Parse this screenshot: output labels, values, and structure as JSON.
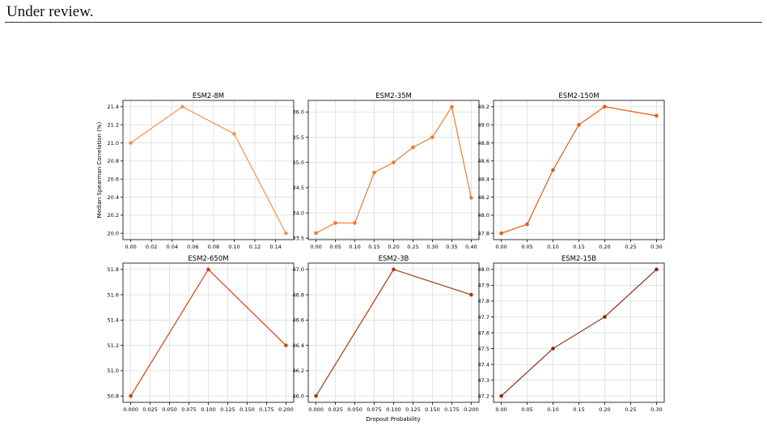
{
  "header": {
    "text": "Under review."
  },
  "figure": {
    "xlabel": "Dropout Probability",
    "ylabel": "Median Spearman Correlation (%)"
  },
  "chart_data": [
    {
      "type": "line",
      "title": "ESM2-8M",
      "color": "#f4924b",
      "x": [
        0.0,
        0.05,
        0.1,
        0.15
      ],
      "y": [
        21.0,
        21.4,
        21.1,
        20.0
      ],
      "xlim": [
        -0.0075,
        0.1575
      ],
      "ylim": [
        19.93,
        21.47
      ],
      "xticks": [
        0.0,
        0.02,
        0.04,
        0.06,
        0.08,
        0.1,
        0.12,
        0.14
      ],
      "xtick_labels": [
        "0.00",
        "0.02",
        "0.04",
        "0.06",
        "0.08",
        "0.10",
        "0.12",
        "0.14"
      ],
      "yticks": [
        20.0,
        20.2,
        20.4,
        20.6,
        20.8,
        21.0,
        21.2,
        21.4
      ],
      "ytick_labels": [
        "20.0",
        "20.2",
        "20.4",
        "20.6",
        "20.8",
        "21.0",
        "21.2",
        "21.4"
      ],
      "grid": true
    },
    {
      "type": "line",
      "title": "ESM2-35M",
      "color": "#ef7a2c",
      "x": [
        0.0,
        0.05,
        0.1,
        0.15,
        0.2,
        0.25,
        0.3,
        0.35,
        0.4
      ],
      "y": [
        33.6,
        33.8,
        33.8,
        34.8,
        35.0,
        35.3,
        35.5,
        36.1,
        34.3
      ],
      "xlim": [
        -0.02,
        0.42
      ],
      "ylim": [
        33.47,
        36.23
      ],
      "xticks": [
        0.0,
        0.05,
        0.1,
        0.15,
        0.2,
        0.25,
        0.3,
        0.35,
        0.4
      ],
      "xtick_labels": [
        "0.00",
        "0.05",
        "0.10",
        "0.15",
        "0.20",
        "0.25",
        "0.30",
        "0.35",
        "0.40"
      ],
      "yticks": [
        33.5,
        34.0,
        34.5,
        35.0,
        35.5,
        36.0
      ],
      "ytick_labels": [
        "33.5",
        "34.0",
        "34.5",
        "35.0",
        "35.5",
        "36.0"
      ],
      "grid": true
    },
    {
      "type": "line",
      "title": "ESM2-150M",
      "color": "#e55a12",
      "x": [
        0.0,
        0.05,
        0.1,
        0.15,
        0.2,
        0.3
      ],
      "y": [
        47.8,
        47.9,
        48.5,
        49.0,
        49.2,
        49.1
      ],
      "xlim": [
        -0.015,
        0.315
      ],
      "ylim": [
        47.73,
        49.27
      ],
      "xticks": [
        0.0,
        0.05,
        0.1,
        0.15,
        0.2,
        0.25,
        0.3
      ],
      "xtick_labels": [
        "0.00",
        "0.05",
        "0.10",
        "0.15",
        "0.20",
        "0.25",
        "0.30"
      ],
      "yticks": [
        47.8,
        48.0,
        48.2,
        48.4,
        48.6,
        48.8,
        49.0,
        49.2
      ],
      "ytick_labels": [
        "47.8",
        "48.0",
        "48.2",
        "48.4",
        "48.6",
        "48.8",
        "49.0",
        "49.2"
      ],
      "grid": true
    },
    {
      "type": "line",
      "title": "ESM2-650M",
      "color": "#c8450c",
      "x": [
        0.0,
        0.1,
        0.2
      ],
      "y": [
        50.8,
        51.8,
        51.2
      ],
      "xlim": [
        -0.01,
        0.21
      ],
      "ylim": [
        50.75,
        51.85
      ],
      "xticks": [
        0.0,
        0.025,
        0.05,
        0.075,
        0.1,
        0.125,
        0.15,
        0.175,
        0.2
      ],
      "xtick_labels": [
        "0.000",
        "0.025",
        "0.050",
        "0.075",
        "0.100",
        "0.125",
        "0.150",
        "0.175",
        "0.200"
      ],
      "yticks": [
        50.8,
        51.0,
        51.2,
        51.4,
        51.6,
        51.8
      ],
      "ytick_labels": [
        "50.8",
        "51.0",
        "51.2",
        "51.4",
        "51.6",
        "51.8"
      ],
      "grid": true
    },
    {
      "type": "line",
      "title": "ESM2-3B",
      "color": "#a8380b",
      "x": [
        0.0,
        0.1,
        0.2
      ],
      "y": [
        46.0,
        47.0,
        46.8
      ],
      "xlim": [
        -0.01,
        0.21
      ],
      "ylim": [
        45.95,
        47.05
      ],
      "xticks": [
        0.0,
        0.025,
        0.05,
        0.075,
        0.1,
        0.125,
        0.15,
        0.175,
        0.2
      ],
      "xtick_labels": [
        "0.000",
        "0.025",
        "0.050",
        "0.075",
        "0.100",
        "0.125",
        "0.150",
        "0.175",
        "0.200"
      ],
      "yticks": [
        46.0,
        46.2,
        46.4,
        46.6,
        46.8,
        47.0
      ],
      "ytick_labels": [
        "46.0",
        "46.2",
        "46.4",
        "46.6",
        "46.8",
        "47.0"
      ],
      "grid": true
    },
    {
      "type": "line",
      "title": "ESM2-15B",
      "color": "#8a2d08",
      "x": [
        0.0,
        0.1,
        0.2,
        0.3
      ],
      "y": [
        47.2,
        47.5,
        47.7,
        48.0
      ],
      "xlim": [
        -0.015,
        0.315
      ],
      "ylim": [
        47.16,
        48.04
      ],
      "xticks": [
        0.0,
        0.05,
        0.1,
        0.15,
        0.2,
        0.25,
        0.3
      ],
      "xtick_labels": [
        "0.00",
        "0.05",
        "0.10",
        "0.15",
        "0.20",
        "0.25",
        "0.30"
      ],
      "yticks": [
        47.2,
        47.3,
        47.4,
        47.5,
        47.6,
        47.7,
        47.8,
        47.9,
        48.0
      ],
      "ytick_labels": [
        "47.2",
        "47.3",
        "47.4",
        "47.5",
        "47.6",
        "47.7",
        "47.8",
        "47.9",
        "48.0"
      ],
      "grid": true
    }
  ]
}
